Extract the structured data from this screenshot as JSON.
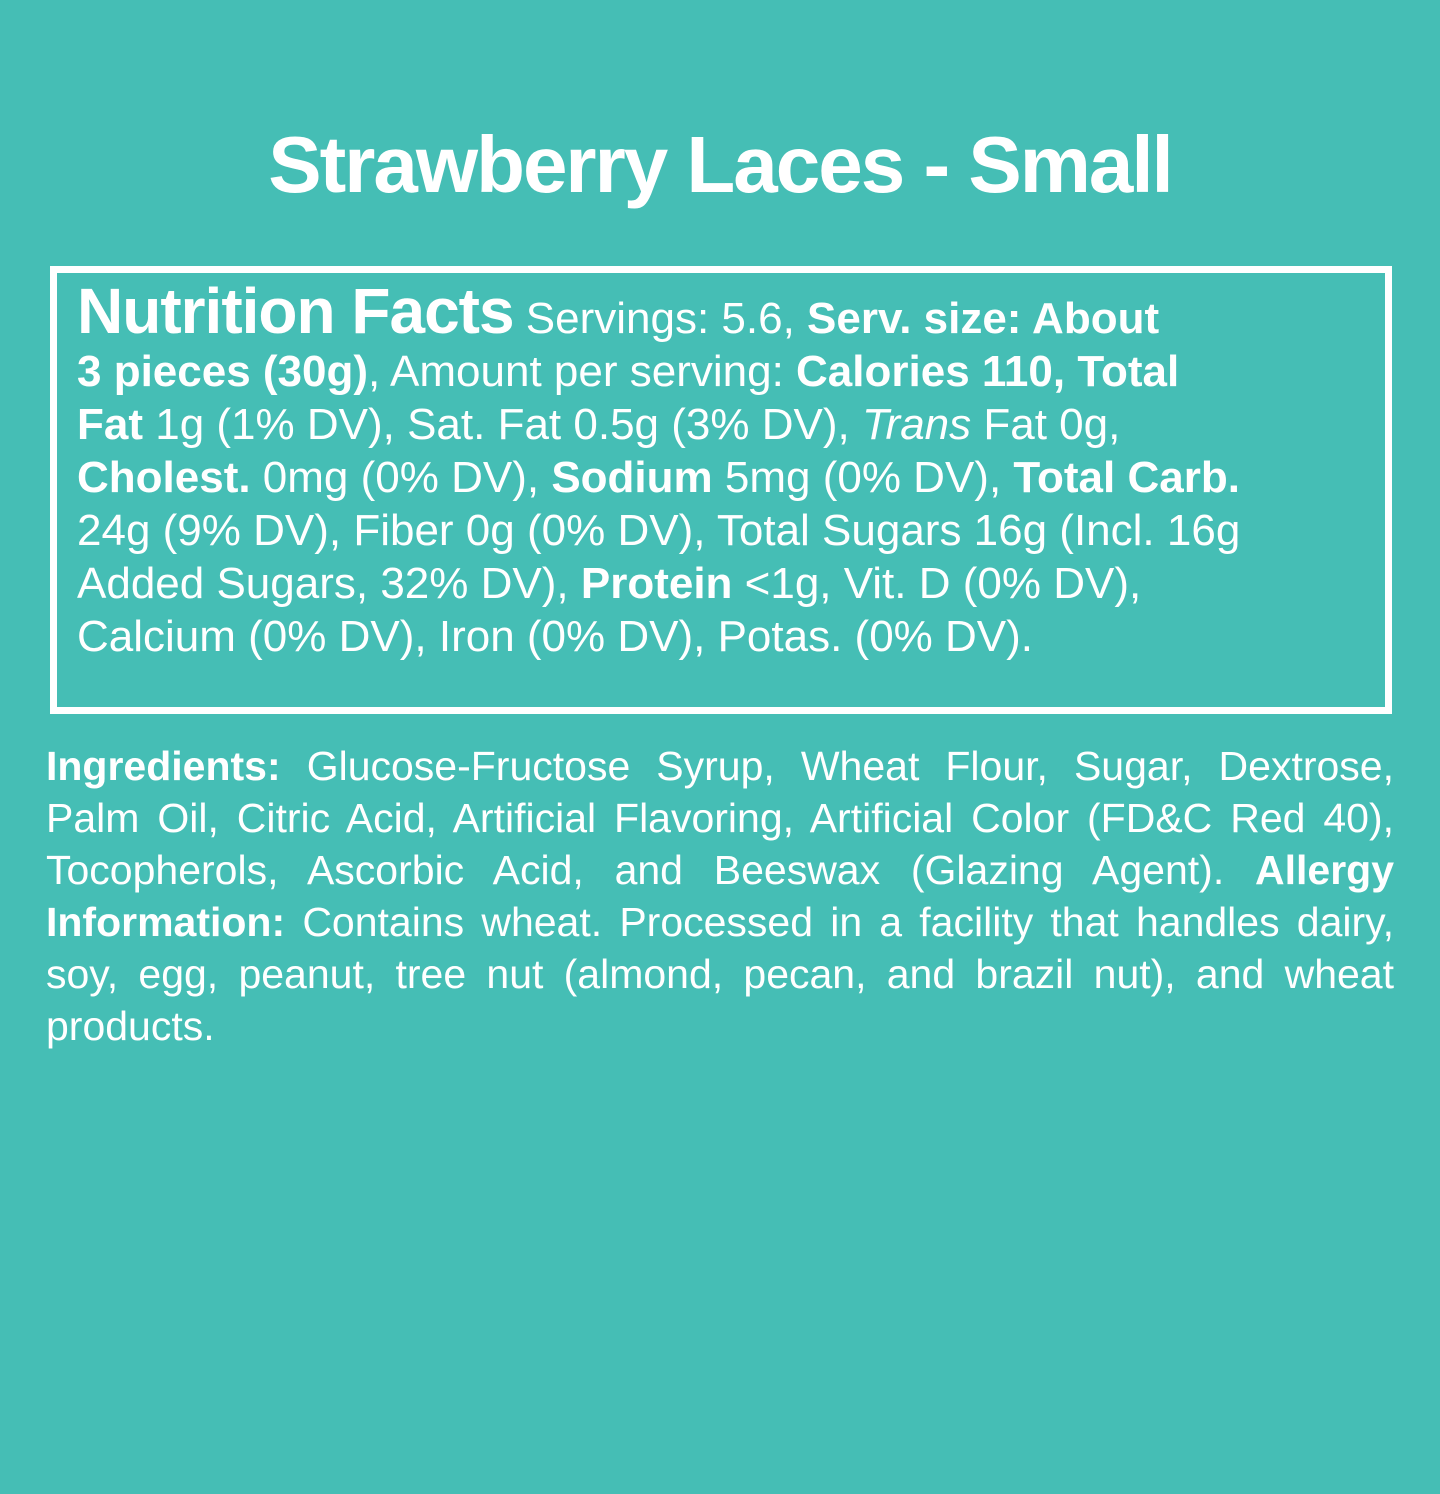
{
  "page": {
    "background_color": "#45BEB5",
    "text_color": "#FFFFFF",
    "border_color": "#FFFFFF"
  },
  "title": "Strawberry Laces - Small",
  "nutrition_facts": {
    "heading": "Nutrition Facts",
    "servings": "5.6",
    "serving_size": "About 3 pieces (30g)",
    "calories": "110",
    "lines": [
      [
        {
          "t": "Nutrition Facts",
          "b": true,
          "h": true
        },
        {
          "t": " Servings: 5.6, "
        },
        {
          "t": "Serv. size: About",
          "b": true
        }
      ],
      [
        {
          "t": "3 pieces (30g)",
          "b": true
        },
        {
          "t": ", Amount per serving: "
        },
        {
          "t": "Calories 110, Total",
          "b": true
        }
      ],
      [
        {
          "t": "Fat",
          "b": true
        },
        {
          "t": " 1g (1% DV), Sat. Fat 0.5g (3% DV), "
        },
        {
          "t": "Trans",
          "i": true
        },
        {
          "t": " Fat 0g,"
        }
      ],
      [
        {
          "t": "Cholest.",
          "b": true
        },
        {
          "t": " 0mg (0% DV), "
        },
        {
          "t": "Sodium",
          "b": true
        },
        {
          "t": " 5mg (0% DV), "
        },
        {
          "t": "Total Carb.",
          "b": true
        }
      ],
      [
        {
          "t": "24g (9% DV), Fiber 0g (0% DV), Total Sugars 16g (Incl. 16g"
        }
      ],
      [
        {
          "t": "Added Sugars, 32% DV), "
        },
        {
          "t": "Protein",
          "b": true
        },
        {
          "t": " <1g, Vit. D (0% DV),"
        }
      ],
      [
        {
          "t": "Calcium (0% DV), Iron (0% DV), Potas. (0% DV)."
        }
      ]
    ]
  },
  "ingredients": {
    "segments": [
      {
        "t": "Ingredients:",
        "b": true
      },
      {
        "t": " Glucose-Fructose Syrup, Wheat Flour, Sugar, Dextrose, Palm Oil, Citric Acid, Artificial Flavoring, Artificial Color (FD&C Red 40), Tocopherols, Ascorbic Acid, and Beeswax (Glazing Agent). "
      },
      {
        "t": "Allergy Information:",
        "b": true
      },
      {
        "t": " Contains wheat. Processed in a facility that handles dairy, soy, egg, peanut, tree nut (almond, pecan, and brazil nut), and wheat products."
      }
    ]
  }
}
